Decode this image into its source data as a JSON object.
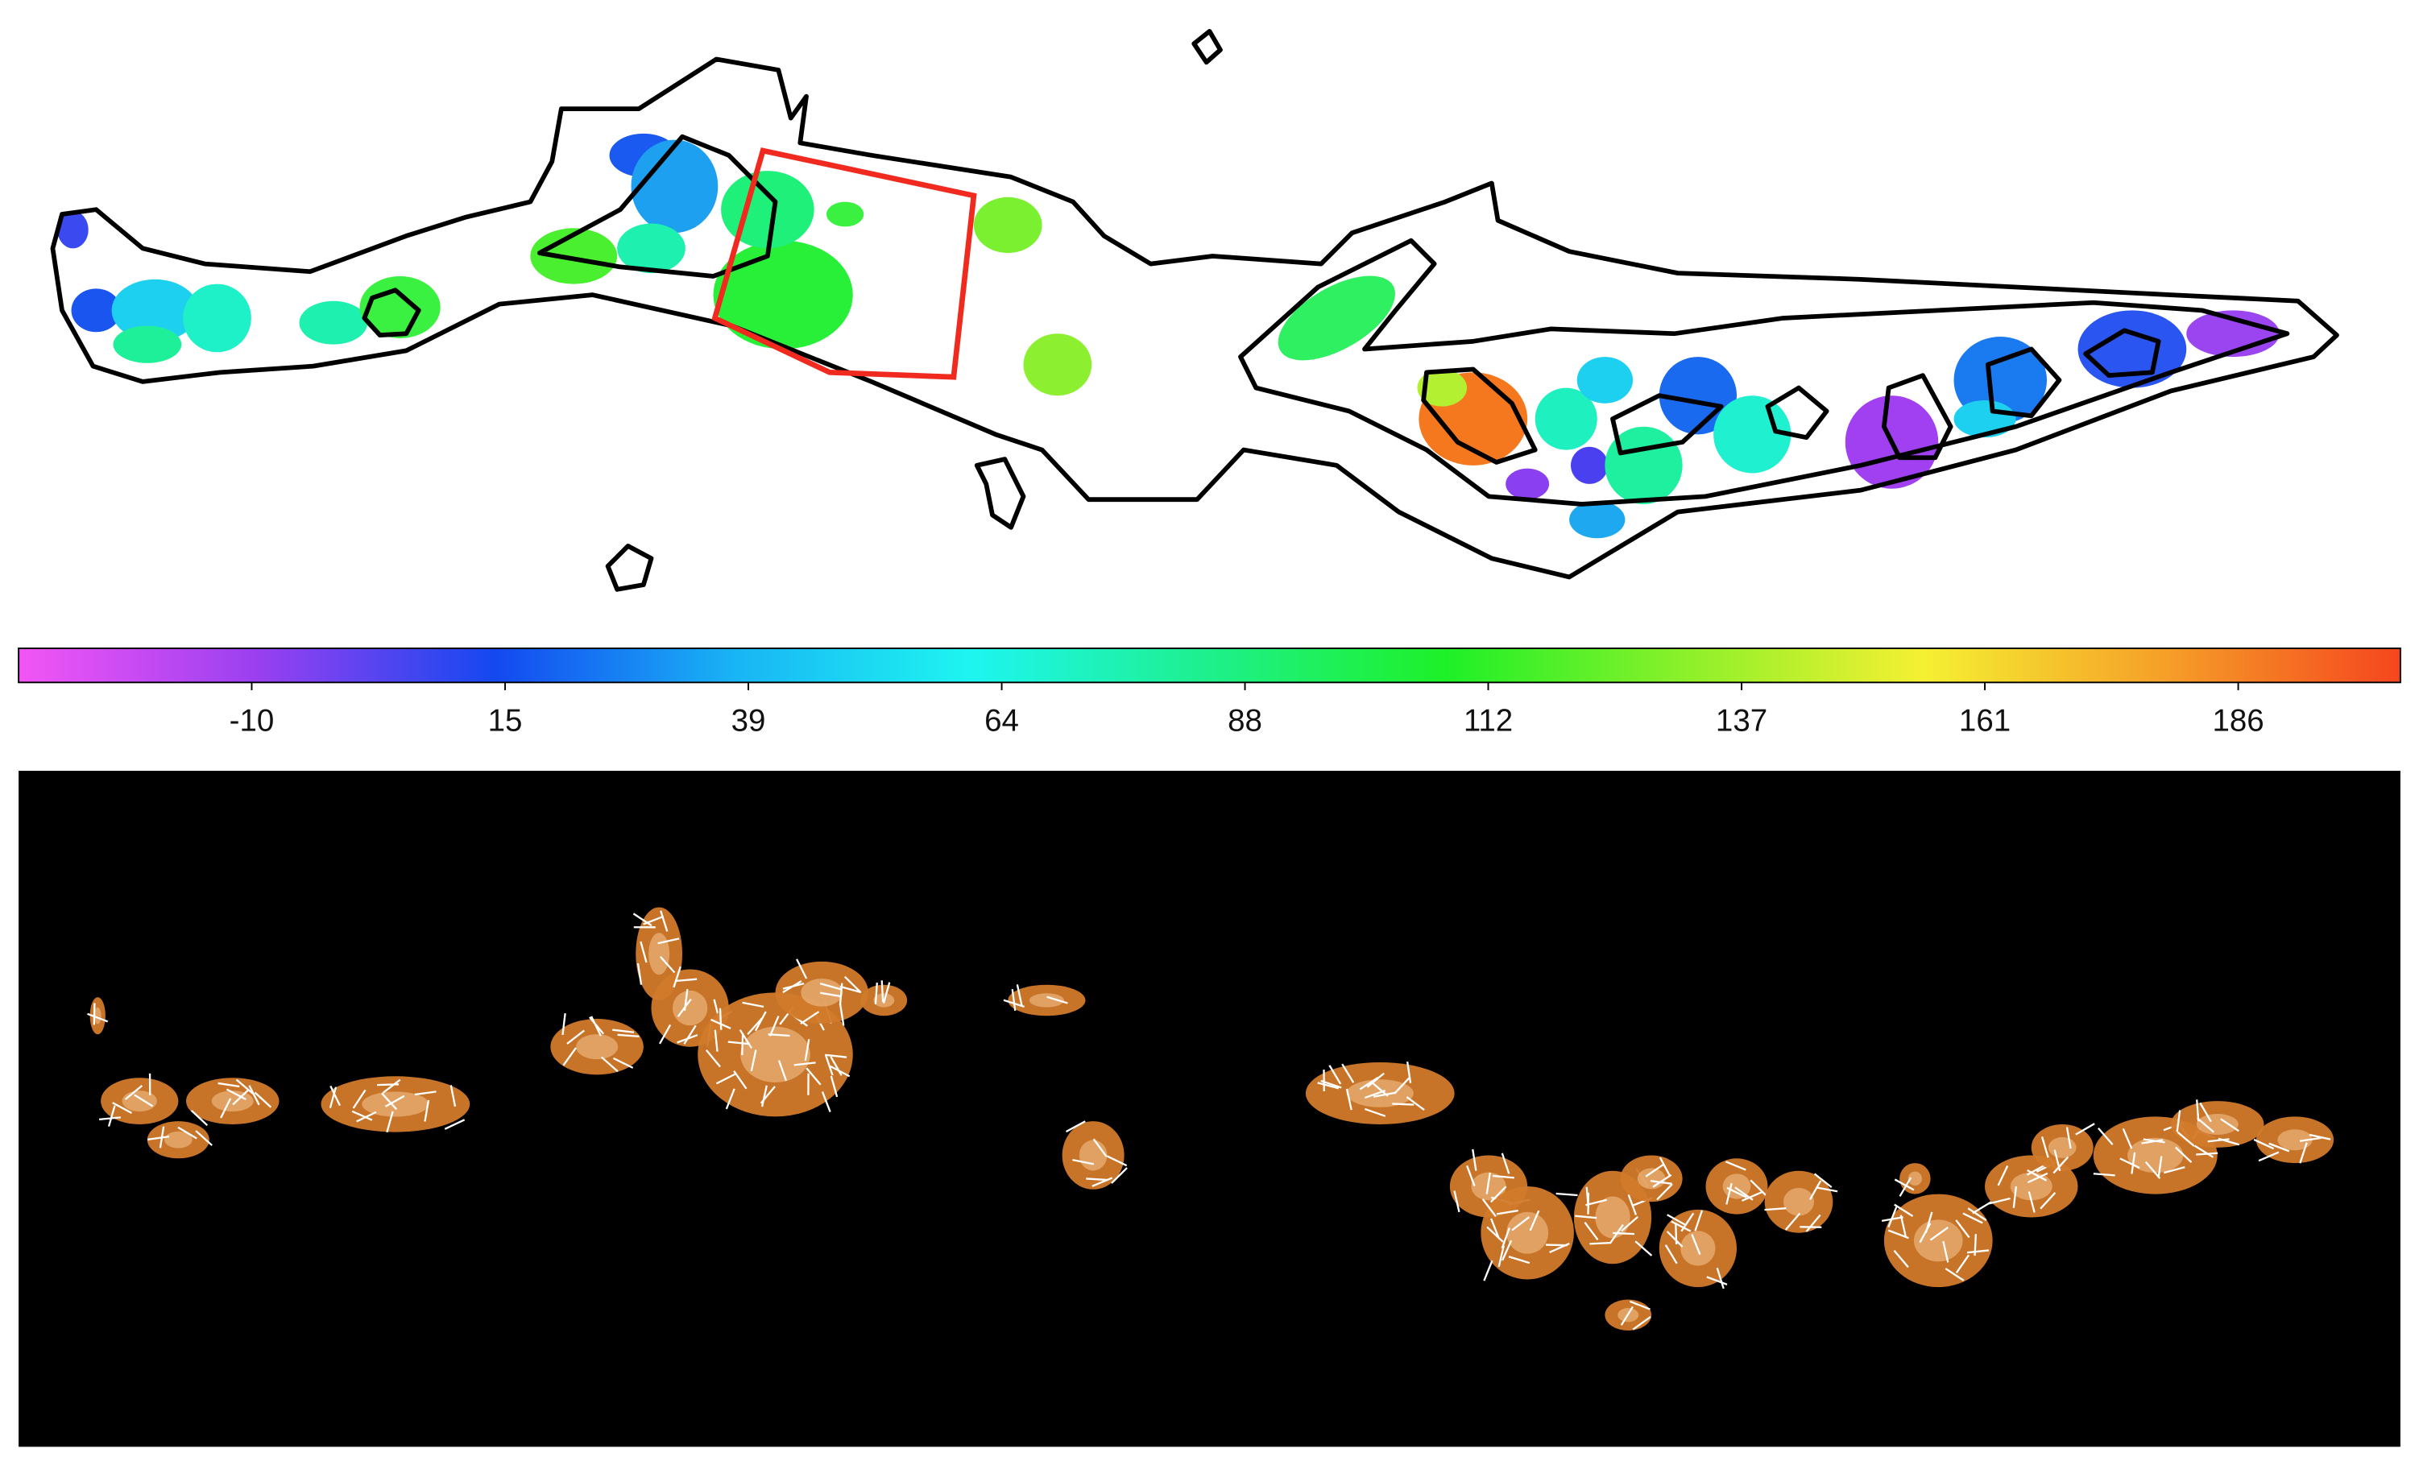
{
  "colorbar": {
    "type": "colorbar",
    "clim": [
      -33,
      202
    ],
    "ticks": [
      -10,
      15,
      39,
      64,
      88,
      112,
      137,
      161,
      186
    ],
    "colors": [
      "#f355f5",
      "#9a40f0",
      "#1448f0",
      "#19b4f5",
      "#1ef5f0",
      "#1ef08c",
      "#1ef028",
      "#8cf02a",
      "#f5f032",
      "#f5a028",
      "#f5461e"
    ]
  }
}
